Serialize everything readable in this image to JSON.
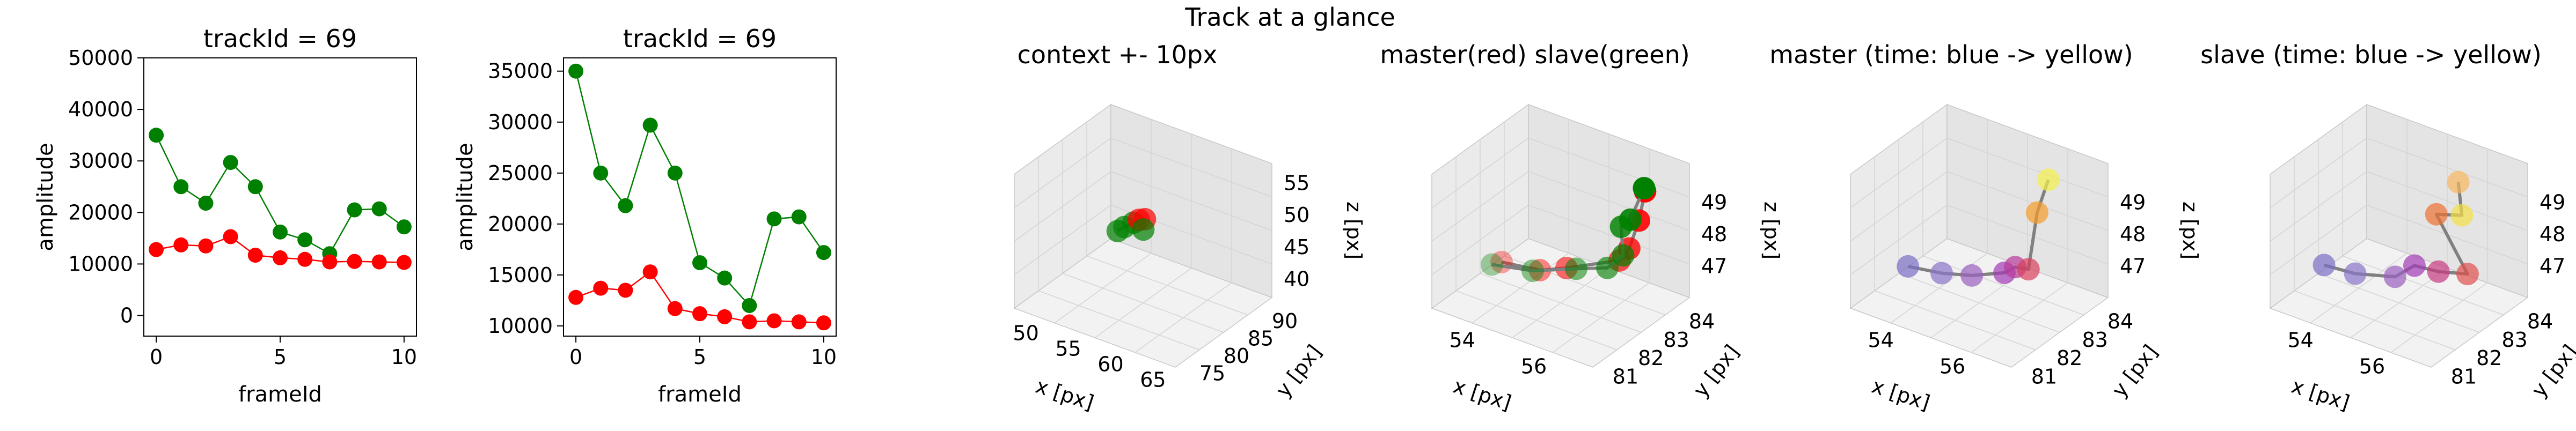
{
  "figure": {
    "suptitle": "Track at a glance"
  },
  "colors": {
    "red": "#ff0000",
    "green": "#008000",
    "line": "#808080",
    "pane": "#f2f2f2",
    "grid": "#d4d4d4"
  },
  "chart_data": [
    {
      "type": "line",
      "title": "trackId = 69",
      "xlabel": "frameId",
      "ylabel": "amplitude",
      "xticks": [
        "0",
        "5",
        "10"
      ],
      "yticks": [
        "0",
        "10000",
        "20000",
        "30000",
        "40000",
        "50000"
      ],
      "xlim": [
        -0.5,
        10.5
      ],
      "ylim": [
        -4000,
        50000
      ],
      "x": [
        0,
        1,
        2,
        3,
        4,
        5,
        6,
        7,
        8,
        9,
        10
      ],
      "series": [
        {
          "color": "#008000",
          "values": [
            35000,
            25000,
            21800,
            29700,
            25000,
            16200,
            14700,
            12000,
            20500,
            20700,
            17200
          ]
        },
        {
          "color": "#ff0000",
          "values": [
            12800,
            13700,
            13500,
            15300,
            11700,
            11200,
            10900,
            10400,
            10500,
            10400,
            10300
          ]
        }
      ]
    },
    {
      "type": "line",
      "title": "trackId = 69",
      "xlabel": "frameId",
      "ylabel": "amplitude",
      "xticks": [
        "0",
        "5",
        "10"
      ],
      "yticks": [
        "10000",
        "15000",
        "20000",
        "25000",
        "30000",
        "35000"
      ],
      "xlim": [
        -0.5,
        10.5
      ],
      "ylim": [
        9000,
        36300
      ],
      "x": [
        0,
        1,
        2,
        3,
        4,
        5,
        6,
        7,
        8,
        9,
        10
      ],
      "series": [
        {
          "color": "#008000",
          "values": [
            35000,
            25000,
            21800,
            29700,
            25000,
            16200,
            14700,
            12000,
            20500,
            20700,
            17200
          ]
        },
        {
          "color": "#ff0000",
          "values": [
            12800,
            13700,
            13500,
            15300,
            11700,
            11200,
            10900,
            10400,
            10500,
            10400,
            10300
          ]
        }
      ]
    },
    {
      "type": "scatter",
      "title": "context +- 10px",
      "xlabel": "x [px]",
      "ylabel": "y [px]",
      "zlabel": "z [px]",
      "xticks": [
        "50",
        "55",
        "60",
        "65"
      ],
      "yticks": [
        "75",
        "80",
        "85",
        "90"
      ],
      "zticks": [
        "40",
        "45",
        "50",
        "55"
      ],
      "points": [
        {
          "x": 54.5,
          "y": 82.0,
          "z": 46.8,
          "color": "#008000"
        },
        {
          "x": 55.0,
          "y": 82.5,
          "z": 47.4,
          "color": "#008000"
        },
        {
          "x": 55.8,
          "y": 83.0,
          "z": 48.2,
          "color": "#008000"
        },
        {
          "x": 56.2,
          "y": 83.4,
          "z": 48.6,
          "color": "#ff0000"
        },
        {
          "x": 56.8,
          "y": 83.6,
          "z": 48.9,
          "color": "#ff0000"
        },
        {
          "x": 56.9,
          "y": 83.1,
          "z": 47.6,
          "color": "#008000"
        }
      ]
    },
    {
      "type": "scatter",
      "title": "master(red) slave(green)",
      "xlabel": "x [px]",
      "ylabel": "y [px]",
      "zlabel": "z [px]",
      "xticks": [
        "54",
        "56"
      ],
      "yticks": [
        "81",
        "82",
        "83",
        "84"
      ],
      "zticks": [
        "47",
        "48",
        "49"
      ],
      "series": [
        {
          "name": "master",
          "color": "#ff0000",
          "points": [
            [
              53.6,
              82.5,
              46.6
            ],
            [
              54.6,
              82.6,
              46.7
            ],
            [
              55.2,
              82.8,
              46.9
            ],
            [
              56.4,
              83.2,
              47.4
            ],
            [
              56.6,
              83.3,
              47.8
            ],
            [
              56.8,
              83.4,
              48.7
            ],
            [
              56.9,
              83.5,
              49.6
            ]
          ]
        },
        {
          "name": "slave",
          "color": "#008000",
          "points": [
            [
              53.4,
              82.4,
              46.5
            ],
            [
              54.4,
              82.6,
              46.6
            ],
            [
              55.4,
              82.9,
              46.9
            ],
            [
              56.2,
              83.0,
              47.2
            ],
            [
              56.5,
              83.2,
              47.6
            ],
            [
              56.3,
              83.4,
              48.3
            ],
            [
              56.7,
              83.2,
              48.8
            ],
            [
              56.8,
              83.6,
              49.6
            ]
          ]
        }
      ]
    },
    {
      "type": "scatter",
      "title": "master (time: blue -> yellow)",
      "xlabel": "x [px]",
      "ylabel": "y [px]",
      "zlabel": "z [px]",
      "xticks": [
        "54",
        "56"
      ],
      "yticks": [
        "81",
        "82",
        "83",
        "84"
      ],
      "zticks": [
        "47",
        "48",
        "49"
      ],
      "points": [
        {
          "x": 53.4,
          "y": 82.3,
          "z": 46.5,
          "color": "#7b6fc4"
        },
        {
          "x": 54.2,
          "y": 82.5,
          "z": 46.5,
          "color": "#8a73c8"
        },
        {
          "x": 54.9,
          "y": 82.7,
          "z": 46.6,
          "color": "#9a60c0"
        },
        {
          "x": 55.6,
          "y": 83.0,
          "z": 46.8,
          "color": "#a23cb8"
        },
        {
          "x": 55.9,
          "y": 83.0,
          "z": 47.1,
          "color": "#b83a9a"
        },
        {
          "x": 56.2,
          "y": 83.1,
          "z": 47.1,
          "color": "#d8405c"
        },
        {
          "x": 56.3,
          "y": 83.3,
          "z": 48.8,
          "color": "#f59b28"
        },
        {
          "x": 56.4,
          "y": 83.6,
          "z": 49.7,
          "color": "#f5f04a"
        }
      ]
    },
    {
      "type": "scatter",
      "title": "slave (time: blue -> yellow)",
      "xlabel": "x [px]",
      "ylabel": "y [px]",
      "zlabel": "z [px]",
      "xticks": [
        "54",
        "56"
      ],
      "yticks": [
        "81",
        "82",
        "83",
        "84"
      ],
      "zticks": [
        "47",
        "48",
        "49"
      ],
      "points": [
        {
          "x": 53.3,
          "y": 82.3,
          "z": 46.5,
          "color": "#7b6fc4"
        },
        {
          "x": 54.1,
          "y": 82.4,
          "z": 46.5,
          "color": "#8a73c8"
        },
        {
          "x": 55.0,
          "y": 82.7,
          "z": 46.6,
          "color": "#9a60c0"
        },
        {
          "x": 55.4,
          "y": 82.9,
          "z": 47.0,
          "color": "#a23cb8"
        },
        {
          "x": 56.0,
          "y": 83.0,
          "z": 47.0,
          "color": "#c63c80"
        },
        {
          "x": 56.6,
          "y": 83.3,
          "z": 47.0,
          "color": "#e0504e"
        },
        {
          "x": 55.8,
          "y": 83.2,
          "z": 48.6,
          "color": "#ec7030"
        },
        {
          "x": 56.3,
          "y": 83.5,
          "z": 48.6,
          "color": "#f5e048"
        },
        {
          "x": 56.2,
          "y": 83.5,
          "z": 49.6,
          "color": "#f8b860"
        }
      ]
    }
  ]
}
